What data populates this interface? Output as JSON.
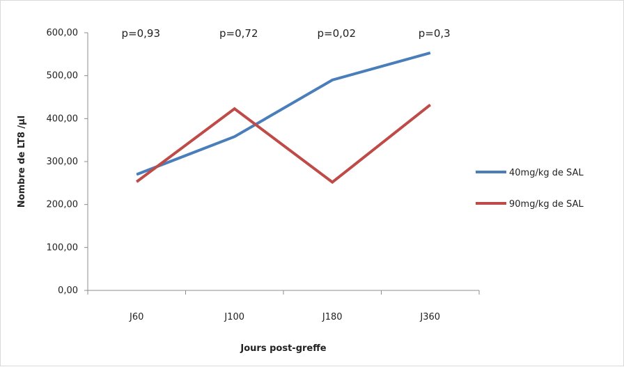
{
  "chart_data": {
    "type": "line",
    "title": "",
    "xlabel": "Jours post-greffe",
    "ylabel": "Nombre de LT8 /µl",
    "categories": [
      "J60",
      "J100",
      "J180",
      "J360"
    ],
    "ylim": [
      0,
      600
    ],
    "yticks": [
      "0,00",
      "100,00",
      "200,00",
      "300,00",
      "400,00",
      "500,00",
      "600,00"
    ],
    "grid": false,
    "legend_position": "right",
    "series": [
      {
        "name": "40mg/kg de SAL",
        "color": "#4a7ebb",
        "values": [
          270,
          358,
          490,
          553
        ]
      },
      {
        "name": "90mg/kg de SAL",
        "color": "#be4b48",
        "values": [
          253,
          423,
          252,
          432
        ]
      }
    ],
    "annotations": [
      "p=0,93",
      "p=0,72",
      "p=0,02",
      "p=0,3"
    ]
  }
}
